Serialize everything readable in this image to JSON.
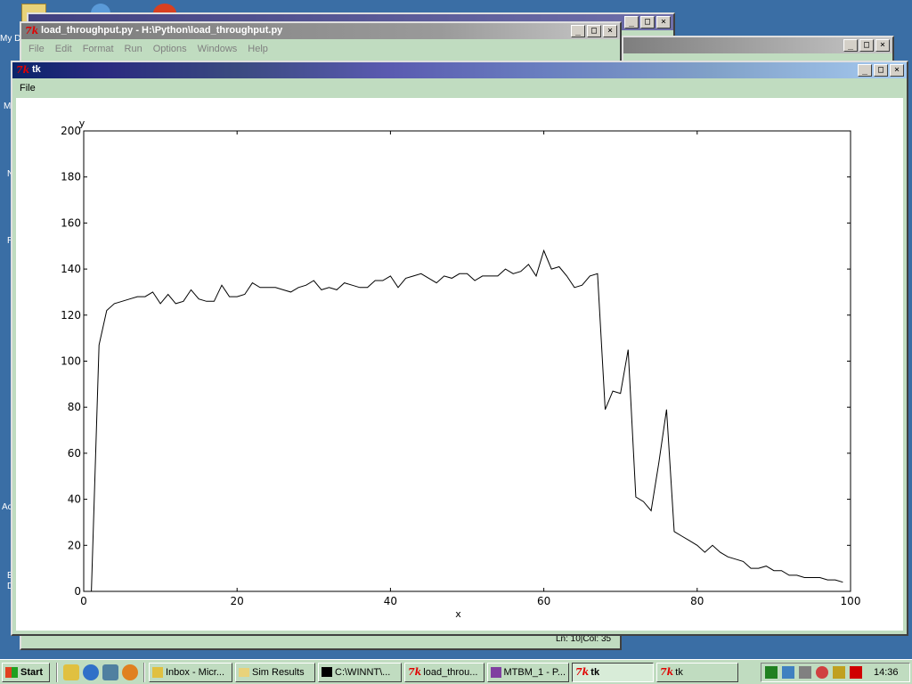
{
  "desktop": {
    "labels": [
      "My D",
      "M",
      "N",
      "R",
      "Ac",
      "E",
      "D"
    ]
  },
  "back_window_2": {
    "title": ""
  },
  "editor": {
    "title": "load_throughput.py - H:\\Python\\load_throughput.py",
    "menu": [
      "File",
      "Edit",
      "Format",
      "Run",
      "Options",
      "Windows",
      "Help"
    ],
    "status": "Ln: 10|Col: 35"
  },
  "tk_window": {
    "title": "tk",
    "menu": [
      "File"
    ]
  },
  "chart_data": {
    "type": "line",
    "xlabel": "x",
    "ylabel": "y",
    "xlim": [
      0,
      100
    ],
    "ylim": [
      0,
      200
    ],
    "xticks": [
      0,
      20,
      40,
      60,
      80,
      100
    ],
    "yticks": [
      0,
      20,
      40,
      60,
      80,
      100,
      120,
      140,
      160,
      180,
      200
    ],
    "series": [
      {
        "x": [
          1,
          2,
          3,
          4,
          5,
          6,
          7,
          8,
          9,
          10,
          11,
          12,
          13,
          14,
          15,
          16,
          17,
          18,
          19,
          20,
          21,
          22,
          23,
          24,
          25,
          26,
          27,
          28,
          29,
          30,
          31,
          32,
          33,
          34,
          35,
          36,
          37,
          38,
          39,
          40,
          41,
          42,
          43,
          44,
          45,
          46,
          47,
          48,
          49,
          50,
          51,
          52,
          53,
          54,
          55,
          56,
          57,
          58,
          59,
          60,
          61,
          62,
          63,
          64,
          65,
          66,
          67,
          68,
          69,
          70,
          71,
          72,
          73,
          74,
          75,
          76,
          77,
          78,
          79,
          80,
          81,
          82,
          83,
          84,
          85,
          86,
          87,
          88,
          89,
          90,
          91,
          92,
          93,
          94,
          95,
          96,
          97,
          98,
          99
        ],
        "y": [
          0,
          107,
          122,
          125,
          126,
          127,
          128,
          128,
          130,
          125,
          129,
          125,
          126,
          131,
          127,
          126,
          126,
          133,
          128,
          128,
          129,
          134,
          132,
          132,
          132,
          131,
          130,
          132,
          133,
          135,
          131,
          132,
          131,
          134,
          133,
          132,
          132,
          135,
          135,
          137,
          132,
          136,
          137,
          138,
          136,
          134,
          137,
          136,
          138,
          138,
          135,
          137,
          137,
          137,
          140,
          138,
          139,
          142,
          137,
          148,
          140,
          141,
          137,
          132,
          133,
          137,
          138,
          79,
          87,
          86,
          105,
          41,
          39,
          35,
          56,
          79,
          26,
          24,
          22,
          20,
          17,
          20,
          17,
          15,
          14,
          13,
          10,
          10,
          11,
          9,
          9,
          7,
          7,
          6,
          6,
          6,
          5,
          5,
          4
        ]
      }
    ]
  },
  "taskbar": {
    "start_label": "Start",
    "buttons": [
      "Inbox - Micr...",
      "Sim Results",
      "C:\\WINNT\\...",
      "load_throu...",
      "MTBM_1 - P...",
      "tk",
      "tk"
    ],
    "clock": "14:36"
  }
}
